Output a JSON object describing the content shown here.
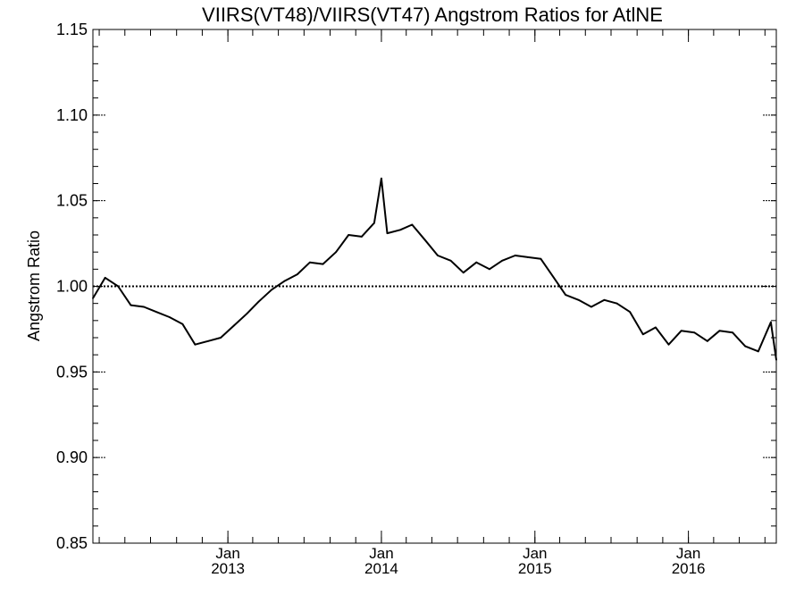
{
  "chart_data": {
    "type": "line",
    "title": "VIIRS(VT48)/VIIRS(VT47)  Angstrom Ratios for AtlNE",
    "xlabel": "",
    "ylabel": "Angstrom Ratio",
    "ylim": [
      0.85,
      1.15
    ],
    "xlim": [
      "2012-02-15",
      "2016-07-28"
    ],
    "y_ticks": [
      "0.85",
      "0.90",
      "0.95",
      "1.00",
      "1.05",
      "1.10",
      "1.15"
    ],
    "x_ticks": [
      {
        "date": "2013-01-01",
        "month": "Jan",
        "year": "2013"
      },
      {
        "date": "2014-01-01",
        "month": "Jan",
        "year": "2014"
      },
      {
        "date": "2015-01-01",
        "month": "Jan",
        "year": "2015"
      },
      {
        "date": "2016-01-01",
        "month": "Jan",
        "year": "2016"
      }
    ],
    "reference_line": {
      "y": 1.0,
      "style": "dotted"
    },
    "grid": false,
    "series": [
      {
        "x": [
          "2012-02-15",
          "2012-03-15",
          "2012-04-15",
          "2012-05-15",
          "2012-06-15",
          "2012-07-15",
          "2012-08-15",
          "2012-09-15",
          "2012-10-15",
          "2012-11-15",
          "2012-12-15",
          "2013-01-15",
          "2013-02-15",
          "2013-03-15",
          "2013-04-15",
          "2013-05-15",
          "2013-06-15",
          "2013-07-15",
          "2013-08-15",
          "2013-09-15",
          "2013-10-15",
          "2013-11-15",
          "2013-12-15",
          "2014-01-01",
          "2014-01-15",
          "2014-02-15",
          "2014-03-15",
          "2014-04-15",
          "2014-05-15",
          "2014-06-15",
          "2014-07-15",
          "2014-08-15",
          "2014-09-15",
          "2014-10-15",
          "2014-11-15",
          "2014-12-15",
          "2015-01-15",
          "2015-02-15",
          "2015-03-15",
          "2015-04-15",
          "2015-05-15",
          "2015-06-15",
          "2015-07-15",
          "2015-08-15",
          "2015-09-15",
          "2015-10-15",
          "2015-11-15",
          "2015-12-15",
          "2016-01-15",
          "2016-02-15",
          "2016-03-15",
          "2016-04-15",
          "2016-05-15",
          "2016-06-15",
          "2016-07-15",
          "2016-07-28"
        ],
        "values": [
          0.993,
          1.005,
          1.0,
          0.989,
          0.988,
          0.985,
          0.982,
          0.978,
          0.966,
          0.968,
          0.97,
          0.977,
          0.984,
          0.991,
          0.998,
          1.003,
          1.007,
          1.014,
          1.013,
          1.02,
          1.03,
          1.029,
          1.037,
          1.063,
          1.031,
          1.033,
          1.036,
          1.027,
          1.018,
          1.015,
          1.008,
          1.014,
          1.01,
          1.015,
          1.018,
          1.017,
          1.016,
          1.005,
          0.995,
          0.992,
          0.988,
          0.992,
          0.99,
          0.985,
          0.972,
          0.976,
          0.966,
          0.974,
          0.973,
          0.968,
          0.974,
          0.973,
          0.965,
          0.962,
          0.979,
          0.957
        ]
      }
    ]
  }
}
